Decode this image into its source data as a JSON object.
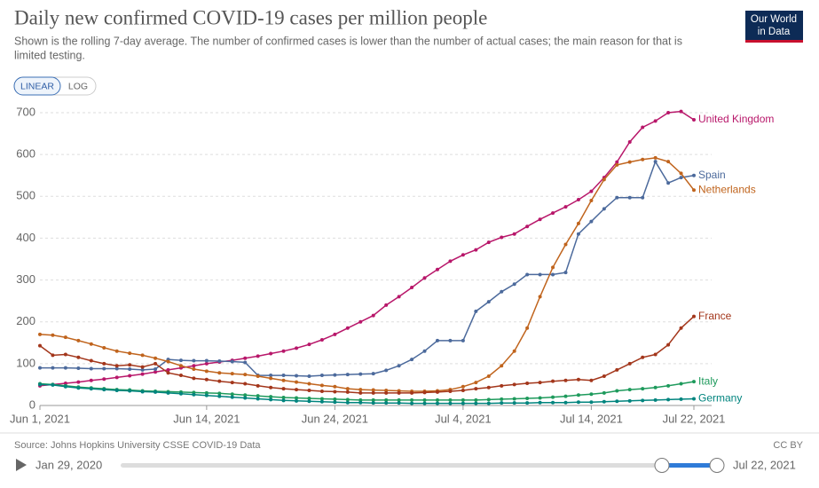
{
  "chart_data": {
    "type": "line",
    "title": "Daily new confirmed COVID-19 cases per million people",
    "subtitle_lines": [
      "Shown is the rolling 7-day average. The number of confirmed cases is lower than the number of actual cases; the main reason for that is",
      "limited testing."
    ],
    "logo": [
      "Our World",
      "in Data"
    ],
    "scale_buttons": [
      "LINEAR",
      "LOG"
    ],
    "log_scale": false,
    "grid": true,
    "source": "Source: Johns Hopkins University CSSE COVID-19 Data",
    "license": "CC BY",
    "timeline": {
      "start": "Jan 29, 2020",
      "end": "Jul 22, 2021"
    },
    "x": [
      "2021-06-01",
      "2021-06-02",
      "2021-06-03",
      "2021-06-04",
      "2021-06-05",
      "2021-06-06",
      "2021-06-07",
      "2021-06-08",
      "2021-06-09",
      "2021-06-10",
      "2021-06-11",
      "2021-06-12",
      "2021-06-13",
      "2021-06-14",
      "2021-06-15",
      "2021-06-16",
      "2021-06-17",
      "2021-06-18",
      "2021-06-19",
      "2021-06-20",
      "2021-06-21",
      "2021-06-22",
      "2021-06-23",
      "2021-06-24",
      "2021-06-25",
      "2021-06-26",
      "2021-06-27",
      "2021-06-28",
      "2021-06-29",
      "2021-06-30",
      "2021-07-01",
      "2021-07-02",
      "2021-07-03",
      "2021-07-04",
      "2021-07-05",
      "2021-07-06",
      "2021-07-07",
      "2021-07-08",
      "2021-07-09",
      "2021-07-10",
      "2021-07-11",
      "2021-07-12",
      "2021-07-13",
      "2021-07-14",
      "2021-07-15",
      "2021-07-16",
      "2021-07-17",
      "2021-07-18",
      "2021-07-19",
      "2021-07-20",
      "2021-07-21",
      "2021-07-22"
    ],
    "xlim": [
      "2021-06-01",
      "2021-07-22"
    ],
    "xticks": [
      {
        "value": "2021-06-01",
        "label": "Jun 1, 2021"
      },
      {
        "value": "2021-06-14",
        "label": "Jun 14, 2021"
      },
      {
        "value": "2021-06-24",
        "label": "Jun 24, 2021"
      },
      {
        "value": "2021-07-04",
        "label": "Jul 4, 2021"
      },
      {
        "value": "2021-07-14",
        "label": "Jul 14, 2021"
      },
      {
        "value": "2021-07-22",
        "label": "Jul 22, 2021"
      }
    ],
    "ylim": [
      0,
      700
    ],
    "yticks": [
      0,
      100,
      200,
      300,
      400,
      500,
      600,
      700
    ],
    "series": [
      {
        "name": "United Kingdom",
        "color": "#b8176a",
        "values": [
          47,
          50,
          53,
          56,
          60,
          63,
          67,
          71,
          75,
          80,
          85,
          90,
          95,
          100,
          104,
          108,
          113,
          118,
          124,
          130,
          137,
          146,
          157,
          170,
          185,
          200,
          215,
          240,
          260,
          282,
          305,
          325,
          345,
          360,
          372,
          390,
          402,
          410,
          428,
          445,
          460,
          475,
          492,
          512,
          545,
          582,
          630,
          665,
          680,
          700,
          703,
          683
        ]
      },
      {
        "name": "Spain",
        "color": "#4c6a9c",
        "values": [
          90,
          90,
          90,
          89,
          88,
          88,
          88,
          87,
          85,
          87,
          110,
          108,
          107,
          107,
          106,
          105,
          103,
          72,
          72,
          72,
          71,
          70,
          72,
          73,
          74,
          75,
          76,
          84,
          95,
          110,
          130,
          155,
          155,
          155,
          225,
          248,
          272,
          290,
          313,
          313,
          313,
          318,
          410,
          440,
          470,
          497,
          497,
          497,
          583,
          532,
          545,
          550
        ]
      },
      {
        "name": "Netherlands",
        "color": "#c0641d",
        "values": [
          170,
          168,
          163,
          155,
          147,
          138,
          130,
          125,
          120,
          113,
          105,
          95,
          87,
          82,
          78,
          76,
          74,
          70,
          65,
          60,
          56,
          52,
          48,
          45,
          40,
          38,
          37,
          36,
          35,
          34,
          34,
          35,
          38,
          45,
          55,
          70,
          95,
          130,
          185,
          260,
          330,
          385,
          435,
          490,
          540,
          575,
          582,
          588,
          592,
          583,
          555,
          515
        ]
      },
      {
        "name": "France",
        "color": "#a3361b",
        "values": [
          143,
          120,
          122,
          115,
          107,
          100,
          95,
          97,
          92,
          100,
          78,
          72,
          65,
          62,
          58,
          55,
          52,
          47,
          43,
          40,
          38,
          36,
          34,
          33,
          32,
          30,
          30,
          30,
          30,
          30,
          31,
          32,
          34,
          36,
          40,
          43,
          47,
          50,
          53,
          55,
          58,
          60,
          62,
          60,
          70,
          85,
          100,
          115,
          122,
          145,
          185,
          213
        ]
      },
      {
        "name": "Italy",
        "color": "#1e9a5c",
        "values": [
          52,
          50,
          47,
          44,
          42,
          40,
          38,
          37,
          35,
          34,
          33,
          32,
          31,
          30,
          29,
          27,
          25,
          23,
          21,
          19,
          18,
          17,
          16,
          15,
          14,
          13,
          13,
          13,
          13,
          13,
          13,
          13,
          13,
          13,
          13,
          14,
          15,
          16,
          17,
          18,
          20,
          22,
          25,
          27,
          30,
          35,
          38,
          40,
          43,
          47,
          52,
          57
        ]
      },
      {
        "name": "Germany",
        "color": "#00847e",
        "values": [
          50,
          49,
          45,
          42,
          40,
          38,
          36,
          35,
          33,
          32,
          30,
          28,
          26,
          24,
          22,
          20,
          18,
          16,
          14,
          12,
          11,
          10,
          9,
          8,
          7,
          7,
          6,
          6,
          6,
          5,
          5,
          5,
          5,
          5,
          5,
          5,
          6,
          6,
          6,
          7,
          7,
          7,
          8,
          8,
          9,
          10,
          11,
          12,
          13,
          14,
          15,
          16
        ]
      }
    ]
  }
}
